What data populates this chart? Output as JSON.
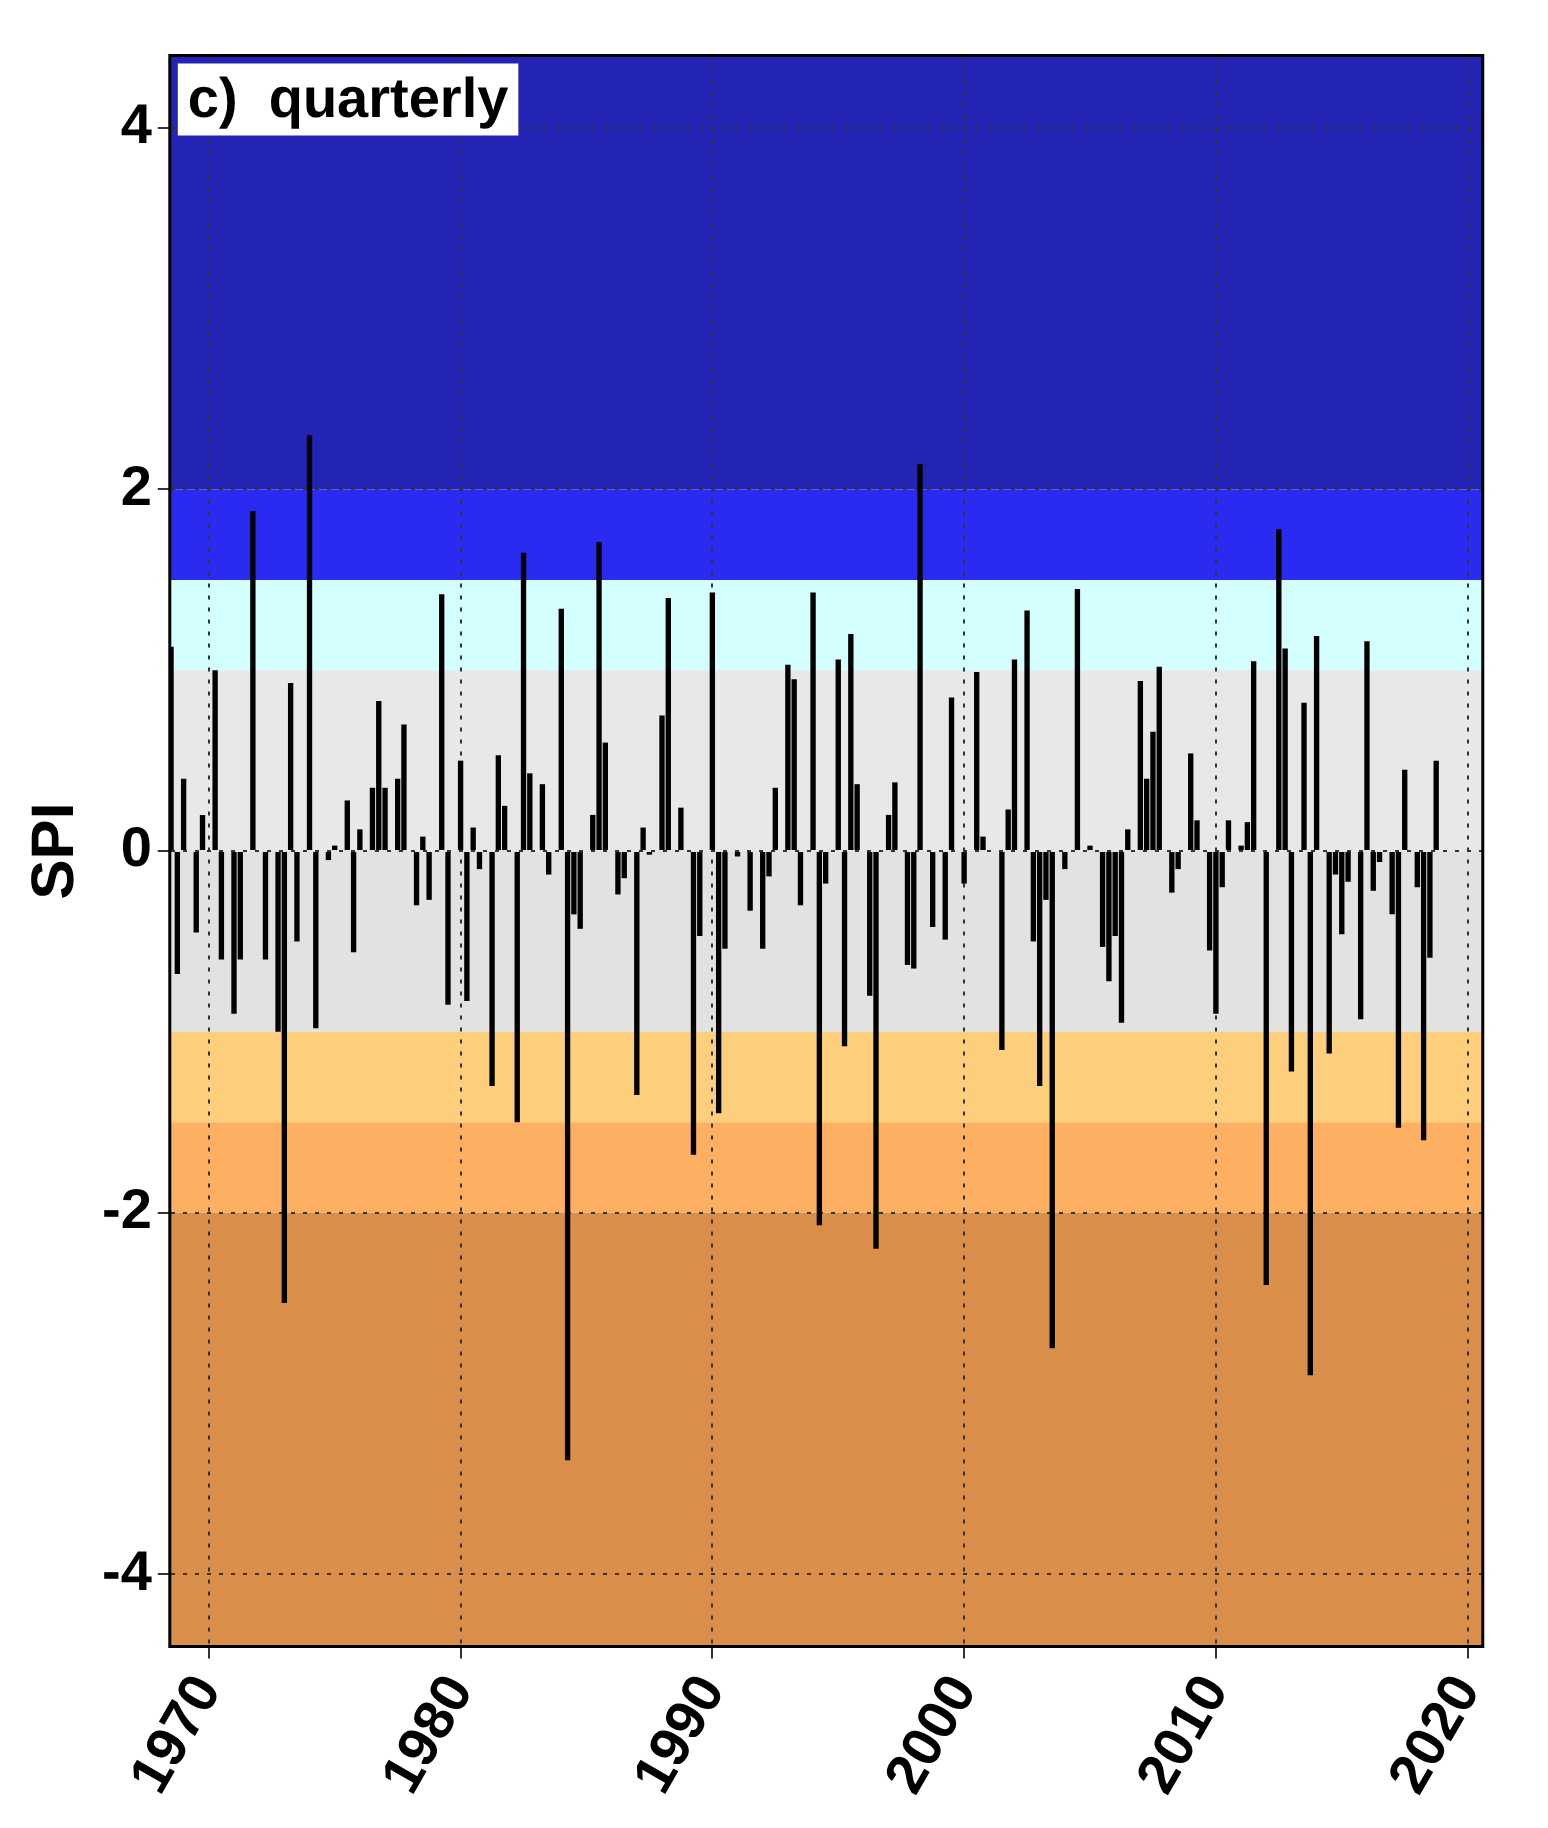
{
  "chart_data": {
    "type": "bar",
    "title": "c)  quarterly",
    "ylabel": "SPI",
    "x": [
      1968.5,
      1968.75,
      1969.0,
      1969.5,
      1969.75,
      1970.25,
      1970.5,
      1971.0,
      1971.25,
      1971.75,
      1972.25,
      1972.75,
      1973.0,
      1973.25,
      1973.5,
      1974.0,
      1974.25,
      1974.75,
      1975.0,
      1975.5,
      1975.75,
      1976.0,
      1976.5,
      1976.75,
      1977.0,
      1977.5,
      1977.75,
      1978.25,
      1978.5,
      1978.75,
      1979.25,
      1979.5,
      1980.0,
      1980.25,
      1980.5,
      1980.75,
      1981.25,
      1981.5,
      1981.75,
      1982.25,
      1982.5,
      1982.75,
      1983.25,
      1983.5,
      1984.0,
      1984.25,
      1984.5,
      1984.75,
      1985.25,
      1985.5,
      1985.75,
      1986.25,
      1986.5,
      1987.0,
      1987.25,
      1987.5,
      1988.0,
      1988.25,
      1988.75,
      1989.25,
      1989.5,
      1990.0,
      1990.25,
      1990.5,
      1991.0,
      1991.5,
      1992.0,
      1992.25,
      1992.5,
      1993.0,
      1993.25,
      1993.5,
      1994.0,
      1994.25,
      1994.5,
      1995.0,
      1995.25,
      1995.5,
      1995.75,
      1996.25,
      1996.5,
      1997.0,
      1997.25,
      1997.75,
      1998.0,
      1998.25,
      1998.75,
      1999.25,
      1999.5,
      2000.0,
      2000.5,
      2000.75,
      2001.5,
      2001.75,
      2002.0,
      2002.5,
      2002.75,
      2003.0,
      2003.25,
      2003.5,
      2004.0,
      2004.5,
      2005.0,
      2005.5,
      2005.75,
      2006.0,
      2006.25,
      2006.5,
      2007.0,
      2007.25,
      2007.5,
      2007.75,
      2008.25,
      2008.5,
      2009.0,
      2009.25,
      2009.75,
      2010.0,
      2010.25,
      2010.5,
      2011.0,
      2011.25,
      2011.5,
      2012.0,
      2012.5,
      2012.75,
      2013.0,
      2013.5,
      2013.75,
      2014.0,
      2014.5,
      2014.75,
      2015.0,
      2015.25,
      2015.75,
      2016.0,
      2016.25,
      2016.5,
      2017.0,
      2017.25,
      2017.5,
      2018.0,
      2018.25,
      2018.5,
      2018.75
    ],
    "series": [
      {
        "color": "#000000",
        "values": [
          1.13,
          -0.68,
          0.4,
          -0.45,
          0.2,
          1.0,
          -0.6,
          -0.9,
          -0.6,
          1.88,
          -0.6,
          -1.0,
          -2.5,
          0.93,
          -0.5,
          2.3,
          -0.98,
          -0.05,
          0.03,
          0.28,
          -0.56,
          0.12,
          0.35,
          0.83,
          0.35,
          0.4,
          0.7,
          -0.3,
          0.08,
          -0.27,
          1.42,
          -0.85,
          0.5,
          -0.83,
          0.13,
          -0.1,
          -1.3,
          0.53,
          0.25,
          -1.5,
          1.65,
          0.43,
          0.37,
          -0.13,
          1.34,
          -3.37,
          -0.35,
          -0.43,
          0.2,
          1.71,
          0.6,
          -0.24,
          -0.15,
          -1.35,
          0.13,
          -0.02,
          0.75,
          1.4,
          0.24,
          -1.68,
          -0.47,
          1.43,
          -1.45,
          -0.54,
          -0.03,
          -0.33,
          -0.54,
          -0.14,
          0.35,
          1.03,
          0.95,
          -0.3,
          1.43,
          -2.07,
          -0.18,
          1.06,
          -1.08,
          1.2,
          0.37,
          -0.8,
          -2.2,
          0.2,
          0.38,
          -0.63,
          -0.65,
          2.14,
          -0.42,
          -0.49,
          0.85,
          -0.18,
          0.99,
          0.08,
          -1.1,
          0.23,
          1.06,
          1.33,
          -0.5,
          -1.3,
          -0.27,
          -2.75,
          -0.1,
          1.45,
          0.03,
          -0.53,
          -0.72,
          -0.47,
          -0.95,
          0.12,
          0.94,
          0.4,
          0.66,
          1.02,
          -0.23,
          -0.1,
          0.54,
          0.17,
          -0.55,
          -0.9,
          -0.2,
          0.17,
          0.03,
          0.16,
          1.05,
          -2.4,
          1.78,
          1.12,
          -1.22,
          0.82,
          -2.9,
          1.19,
          -1.12,
          -0.13,
          -0.46,
          -0.17,
          -0.93,
          1.16,
          -0.22,
          -0.06,
          -0.35,
          -1.53,
          0.45,
          -0.2,
          -1.6,
          -0.59,
          0.5
        ]
      }
    ],
    "xlim": [
      1968.45,
      2020.6
    ],
    "xticks": [
      1970,
      1980,
      1990,
      2000,
      2010,
      2020
    ],
    "ylim": [
      -4.4,
      4.4
    ],
    "yticks": [
      -4,
      -2,
      0,
      2,
      4
    ],
    "bands": [
      {
        "axis": "y",
        "from": 2,
        "to": 4.4,
        "color": "#2424b4"
      },
      {
        "axis": "y",
        "from": 1.5,
        "to": 2,
        "color": "#2a2af0"
      },
      {
        "axis": "y",
        "from": 1,
        "to": 1.5,
        "color": "#d4ffff"
      },
      {
        "axis": "y",
        "from": 0,
        "to": 1,
        "color": "#e8e8e8"
      },
      {
        "axis": "y",
        "from": -1,
        "to": 0,
        "color": "#e2e2e2"
      },
      {
        "axis": "y",
        "from": -1.5,
        "to": -1,
        "color": "#fdcf7c"
      },
      {
        "axis": "y",
        "from": -2,
        "to": -1.5,
        "color": "#fdb061"
      },
      {
        "axis": "y",
        "from": -4.4,
        "to": -2,
        "color": "#d98f4a"
      }
    ],
    "grid": true,
    "legend": false
  }
}
